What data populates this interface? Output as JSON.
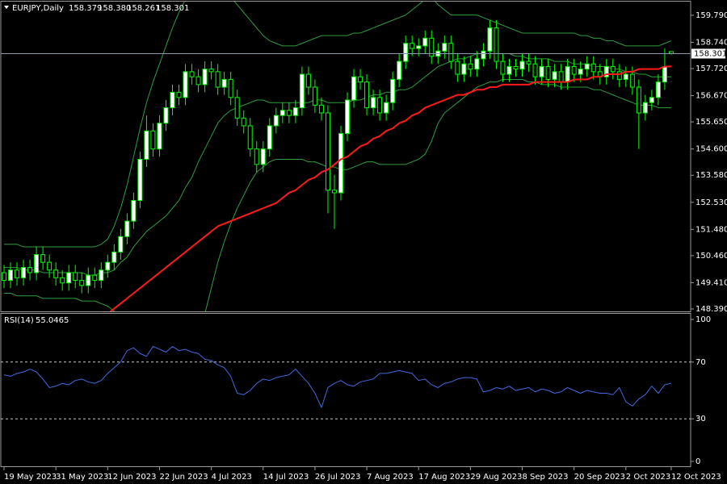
{
  "chart_data": {
    "type": "candlestick",
    "title": "EURJPY,Daily",
    "open": [
      149.8,
      149.5,
      149.9,
      149.6,
      150.0,
      149.8,
      150.5,
      150.2,
      149.9,
      149.6,
      149.4,
      149.8,
      149.5,
      149.3,
      149.7,
      149.5,
      149.9,
      150.2,
      150.6,
      151.2,
      151.8,
      152.6,
      154.2,
      155.3,
      154.6,
      155.6,
      156.2,
      156.8,
      156.6,
      157.6,
      157.4,
      157.1,
      157.7,
      157.6,
      157.0,
      157.3,
      156.6,
      155.8,
      155.5,
      154.6,
      154.0,
      154.6,
      155.5,
      155.9,
      156.1,
      155.9,
      156.2,
      157.5,
      157.0,
      156.3,
      156.0,
      153.0,
      152.9,
      155.2,
      156.5,
      157.4,
      157.2,
      156.2,
      156.6,
      156.0,
      156.4,
      157.3,
      158.0,
      158.7,
      158.5,
      158.6,
      158.9,
      158.2,
      158.4,
      158.7,
      158.0,
      157.5,
      157.9,
      157.7,
      158.1,
      158.4,
      159.3,
      158.0,
      157.5,
      157.8,
      157.7,
      158.0,
      157.9,
      157.4,
      157.8,
      157.3,
      157.6,
      157.2,
      157.8,
      157.5,
      157.7,
      157.9,
      157.6,
      157.4,
      157.8,
      157.6,
      157.3,
      157.5,
      157.0,
      156.0,
      156.4,
      156.6,
      157.2,
      158.379
    ],
    "high": [
      150.1,
      150.2,
      150.2,
      150.3,
      150.3,
      150.8,
      150.8,
      150.5,
      150.2,
      149.9,
      150.1,
      150.1,
      149.8,
      150.0,
      150.0,
      150.2,
      150.5,
      150.9,
      151.5,
      152.1,
      152.9,
      154.5,
      155.9,
      155.6,
      155.9,
      156.5,
      157.1,
      157.1,
      157.9,
      157.9,
      157.7,
      158.0,
      158.0,
      157.9,
      157.6,
      157.6,
      156.9,
      156.1,
      155.8,
      154.9,
      154.9,
      155.8,
      156.2,
      156.4,
      156.4,
      156.5,
      157.8,
      157.8,
      157.3,
      156.6,
      156.3,
      153.6,
      155.5,
      156.8,
      157.7,
      157.7,
      157.5,
      156.9,
      156.9,
      156.7,
      157.6,
      158.3,
      159.0,
      159.0,
      158.9,
      159.2,
      159.2,
      158.7,
      159.0,
      159.0,
      158.3,
      158.2,
      158.2,
      158.4,
      158.7,
      159.6,
      159.6,
      158.3,
      158.1,
      158.1,
      158.3,
      158.3,
      158.2,
      158.1,
      158.1,
      157.9,
      157.9,
      158.1,
      158.1,
      158.0,
      158.2,
      158.2,
      157.9,
      158.1,
      158.1,
      157.9,
      157.8,
      157.8,
      157.3,
      156.7,
      156.9,
      157.5,
      158.5,
      158.38
    ],
    "low": [
      149.2,
      149.2,
      149.3,
      149.3,
      149.5,
      149.5,
      149.9,
      149.6,
      149.3,
      149.1,
      149.1,
      149.2,
      149.0,
      149.0,
      149.2,
      149.2,
      149.6,
      149.9,
      150.3,
      150.9,
      151.5,
      152.3,
      153.9,
      154.3,
      154.3,
      155.3,
      155.9,
      156.3,
      156.3,
      157.1,
      156.8,
      156.8,
      157.3,
      156.7,
      156.7,
      156.3,
      155.5,
      155.2,
      154.3,
      153.7,
      153.7,
      154.3,
      155.2,
      155.6,
      155.6,
      155.6,
      155.9,
      156.7,
      156.0,
      155.7,
      152.1,
      151.5,
      152.6,
      154.9,
      156.2,
      156.9,
      155.9,
      155.9,
      155.7,
      155.7,
      156.1,
      157.0,
      157.7,
      158.2,
      158.2,
      158.3,
      157.9,
      157.9,
      158.1,
      157.7,
      157.2,
      157.2,
      157.4,
      157.4,
      157.8,
      158.1,
      157.7,
      157.2,
      157.2,
      157.4,
      157.4,
      157.6,
      157.1,
      157.1,
      157.0,
      157.0,
      156.9,
      156.9,
      157.2,
      157.2,
      157.4,
      157.3,
      157.1,
      157.1,
      157.3,
      157.0,
      157.0,
      156.7,
      154.6,
      155.7,
      156.1,
      156.3,
      156.9,
      158.261
    ],
    "close": [
      149.5,
      149.9,
      149.6,
      150.0,
      149.8,
      150.5,
      150.2,
      149.9,
      149.6,
      149.4,
      149.8,
      149.5,
      149.3,
      149.7,
      149.5,
      149.9,
      150.2,
      150.6,
      151.2,
      151.8,
      152.6,
      154.2,
      155.3,
      154.6,
      155.6,
      156.2,
      156.8,
      156.6,
      157.6,
      157.4,
      157.1,
      157.7,
      157.6,
      157.0,
      157.3,
      156.6,
      155.8,
      155.5,
      154.6,
      154.0,
      154.6,
      155.5,
      155.9,
      156.1,
      155.9,
      156.2,
      157.5,
      157.0,
      156.3,
      156.0,
      153.0,
      152.9,
      155.2,
      156.5,
      157.4,
      157.2,
      156.2,
      156.6,
      156.0,
      156.4,
      157.3,
      158.0,
      158.7,
      158.5,
      158.6,
      158.9,
      158.2,
      158.4,
      158.7,
      158.0,
      157.5,
      157.9,
      157.7,
      158.1,
      158.4,
      159.3,
      158.0,
      157.5,
      157.8,
      157.7,
      158.0,
      157.9,
      157.4,
      157.8,
      157.3,
      157.6,
      157.2,
      157.8,
      157.5,
      157.7,
      157.9,
      157.6,
      157.4,
      157.8,
      157.6,
      157.3,
      157.5,
      157.0,
      156.0,
      156.4,
      156.6,
      157.2,
      157.8,
      158.301
    ],
    "ohlc_labels": [
      "158.379",
      "158.380",
      "158.261",
      "158.301"
    ],
    "up_color": "#ffffff",
    "down_color": "#000000",
    "candle_color": "#00ff00",
    "price_line_color": "#8a9aa8",
    "xlim": [
      -0.5,
      106
    ],
    "xticks": [
      {
        "value": 0,
        "label": "19 May 2023"
      },
      {
        "value": 8,
        "label": "31 May 2023"
      },
      {
        "value": 16,
        "label": "12 Jun 2023"
      },
      {
        "value": 24,
        "label": "22 Jun 2023"
      },
      {
        "value": 32,
        "label": "4 Jul 2023"
      },
      {
        "value": 40,
        "label": "14 Jul 2023"
      },
      {
        "value": 48,
        "label": "26 Jul 2023"
      },
      {
        "value": 56,
        "label": "7 Aug 2023"
      },
      {
        "value": 64,
        "label": "17 Aug 2023"
      },
      {
        "value": 72,
        "label": "29 Aug 2023"
      },
      {
        "value": 80,
        "label": "8 Sep 2023"
      },
      {
        "value": 88,
        "label": "20 Sep 2023"
      },
      {
        "value": 96,
        "label": "2 Oct 2023"
      },
      {
        "value": 103,
        "label": "12 Oct 2023"
      }
    ],
    "ylim": [
      148.296,
      160.32
    ],
    "yticks": [
      {
        "value": 159.79,
        "label": "159.790"
      },
      {
        "value": 158.74,
        "label": "158.740"
      },
      {
        "value": 157.72,
        "label": "157.720"
      },
      {
        "value": 156.67,
        "label": "156.670"
      },
      {
        "value": 155.65,
        "label": "155.650"
      },
      {
        "value": 154.6,
        "label": "154.600"
      },
      {
        "value": 153.58,
        "label": "153.580"
      },
      {
        "value": 152.53,
        "label": "152.530"
      },
      {
        "value": 151.48,
        "label": "151.480"
      },
      {
        "value": 150.46,
        "label": "150.460"
      },
      {
        "value": 149.41,
        "label": "149.410"
      },
      {
        "value": 148.39,
        "label": "148.390"
      }
    ],
    "overlays": [
      {
        "color": "#2e9e3e",
        "width": 1,
        "values": [
          150.9,
          150.9,
          150.9,
          150.8,
          150.8,
          150.8,
          150.8,
          150.8,
          150.8,
          150.8,
          150.8,
          150.8,
          150.8,
          150.8,
          150.8,
          150.9,
          151.1,
          151.6,
          152.3,
          153.2,
          154.3,
          155.4,
          156.4,
          157.2,
          157.9,
          158.6,
          159.3,
          159.9,
          160.4,
          160.7,
          160.9,
          161.0,
          161.0,
          160.9,
          160.7,
          160.5,
          160.2,
          159.9,
          159.6,
          159.3,
          159.0,
          158.8,
          158.7,
          158.6,
          158.6,
          158.6,
          158.7,
          158.8,
          158.9,
          159.0,
          159.0,
          159.0,
          159.0,
          159.0,
          159.1,
          159.1,
          159.2,
          159.3,
          159.4,
          159.5,
          159.6,
          159.7,
          159.8,
          160.0,
          160.2,
          160.4,
          160.5,
          160.2,
          160.0,
          159.8,
          159.8,
          159.8,
          159.8,
          159.8,
          159.7,
          159.6,
          159.5,
          159.4,
          159.3,
          159.2,
          159.1,
          159.1,
          159.1,
          159.1,
          159.1,
          159.1,
          159.1,
          159.1,
          159.1,
          159.0,
          159.0,
          158.9,
          158.9,
          158.8,
          158.8,
          158.7,
          158.6,
          158.6,
          158.6,
          158.6,
          158.6,
          158.6,
          158.7,
          158.8
        ]
      },
      {
        "color": "#2e9e3e",
        "width": 1,
        "values": [
          150.0,
          150.0,
          150.0,
          149.9,
          149.9,
          149.9,
          149.8,
          149.8,
          149.8,
          149.8,
          149.8,
          149.8,
          149.8,
          149.7,
          149.7,
          149.8,
          149.8,
          149.9,
          150.2,
          150.4,
          150.8,
          151.1,
          151.4,
          151.6,
          151.8,
          152.0,
          152.3,
          152.6,
          153.1,
          153.5,
          154.1,
          154.6,
          155.1,
          155.6,
          155.9,
          156.1,
          156.2,
          156.3,
          156.4,
          156.5,
          156.5,
          156.4,
          156.4,
          156.4,
          156.4,
          156.4,
          156.4,
          156.4,
          156.5,
          156.5,
          156.4,
          156.4,
          156.4,
          156.4,
          156.5,
          156.5,
          156.6,
          156.7,
          156.7,
          156.8,
          156.8,
          156.9,
          156.9,
          157.0,
          157.2,
          157.4,
          157.6,
          157.8,
          157.9,
          158.0,
          158.1,
          158.1,
          158.2,
          158.3,
          158.3,
          158.3,
          158.3,
          158.3,
          158.3,
          158.2,
          158.2,
          158.1,
          158.1,
          158.1,
          158.1,
          158.0,
          158.0,
          158.0,
          157.9,
          157.9,
          157.9,
          157.8,
          157.8,
          157.8,
          157.7,
          157.7,
          157.6,
          157.6,
          157.5,
          157.5,
          157.4,
          157.4,
          157.4,
          157.4
        ]
      },
      {
        "color": "#2e9e3e",
        "width": 1,
        "values": [
          149.0,
          149.0,
          148.9,
          148.9,
          148.9,
          148.9,
          148.8,
          148.8,
          148.8,
          148.8,
          148.8,
          148.8,
          148.7,
          148.7,
          148.7,
          148.6,
          148.5,
          148.3,
          148.0,
          147.6,
          147.2,
          146.8,
          146.4,
          146.0,
          145.6,
          145.4,
          145.3,
          145.4,
          145.8,
          146.4,
          147.2,
          148.2,
          149.2,
          150.2,
          151.0,
          151.7,
          152.3,
          152.8,
          153.3,
          153.7,
          153.9,
          154.1,
          154.2,
          154.2,
          154.2,
          154.2,
          154.2,
          154.1,
          154.1,
          154.0,
          153.9,
          153.9,
          153.8,
          153.8,
          153.9,
          154.0,
          154.1,
          154.1,
          154.0,
          154.0,
          154.0,
          154.0,
          154.0,
          154.1,
          154.2,
          154.4,
          154.9,
          155.6,
          156.0,
          156.2,
          156.4,
          156.6,
          156.8,
          157.0,
          157.1,
          157.2,
          157.2,
          157.3,
          157.3,
          157.3,
          157.3,
          157.2,
          157.2,
          157.1,
          157.1,
          157.1,
          157.0,
          157.0,
          157.0,
          157.0,
          157.0,
          156.9,
          156.9,
          156.8,
          156.7,
          156.6,
          156.5,
          156.4,
          156.3,
          156.3,
          156.3,
          156.2,
          156.2,
          156.2
        ]
      },
      {
        "color": "#ff1a1a",
        "width": 2,
        "values": [
          145.0,
          145.2,
          145.4,
          145.6,
          145.8,
          146.0,
          146.2,
          146.4,
          146.6,
          146.8,
          147.0,
          147.2,
          147.4,
          147.6,
          147.8,
          148.0,
          148.2,
          148.4,
          148.6,
          148.8,
          149.0,
          149.2,
          149.4,
          149.6,
          149.8,
          150.0,
          150.2,
          150.4,
          150.6,
          150.8,
          151.0,
          151.2,
          151.4,
          151.6,
          151.7,
          151.8,
          151.9,
          152.0,
          152.1,
          152.2,
          152.3,
          152.4,
          152.5,
          152.7,
          152.9,
          153.0,
          153.2,
          153.4,
          153.5,
          153.7,
          153.8,
          154.0,
          154.2,
          154.3,
          154.5,
          154.7,
          154.8,
          155.0,
          155.1,
          155.3,
          155.4,
          155.6,
          155.7,
          155.9,
          156.0,
          156.2,
          156.3,
          156.4,
          156.5,
          156.6,
          156.7,
          156.7,
          156.8,
          156.9,
          156.9,
          157.0,
          157.0,
          157.1,
          157.1,
          157.1,
          157.1,
          157.1,
          157.2,
          157.2,
          157.2,
          157.2,
          157.2,
          157.2,
          157.3,
          157.3,
          157.3,
          157.4,
          157.4,
          157.5,
          157.5,
          157.5,
          157.6,
          157.6,
          157.7,
          157.7,
          157.7,
          157.7,
          157.8,
          157.8
        ]
      }
    ],
    "indicator": {
      "type": "line",
      "title": "RSI(14)",
      "color": "#4169e1",
      "values": [
        61,
        60,
        62,
        63,
        65,
        63,
        58,
        52,
        53,
        55,
        54,
        57,
        58,
        56,
        55,
        57,
        62,
        66,
        70,
        78,
        80,
        76,
        74,
        81,
        79,
        77,
        81,
        78,
        79,
        77,
        76,
        72,
        71,
        68,
        66,
        60,
        48,
        47,
        50,
        55,
        58,
        57,
        59,
        60,
        61,
        65,
        60,
        55,
        48,
        38,
        52,
        55,
        57,
        54,
        53,
        56,
        57,
        58,
        62,
        62,
        63,
        64,
        63,
        62,
        57,
        58,
        54,
        52,
        55,
        56,
        58,
        59,
        59,
        58,
        49,
        50,
        52,
        51,
        53,
        50,
        51,
        52,
        49,
        51,
        50,
        48,
        49,
        52,
        50,
        48,
        50,
        49,
        48,
        48,
        47,
        52,
        42,
        39,
        44,
        47,
        53,
        48,
        54,
        55.0465
      ],
      "ylim": [
        0,
        100
      ],
      "yticks": [
        100,
        70,
        30,
        0
      ],
      "levels": [
        70,
        30
      ]
    }
  }
}
